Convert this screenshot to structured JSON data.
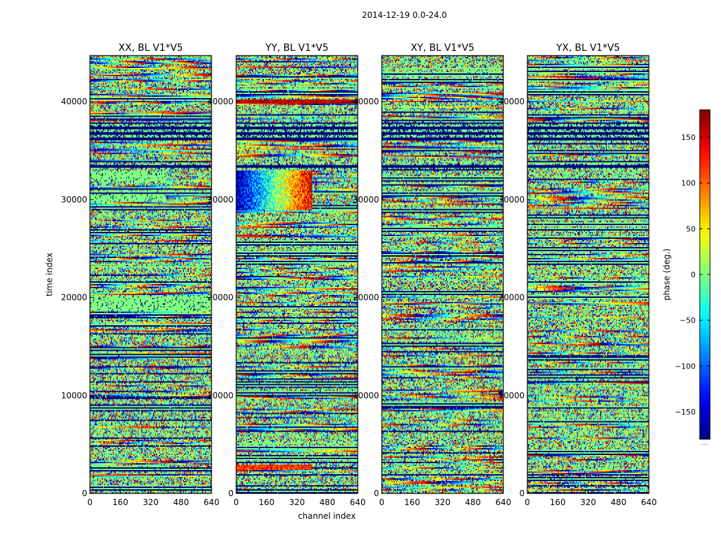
{
  "figure": {
    "suptitle": "2014-12-19 0.0-24.0"
  },
  "chart_data": {
    "type": "heatmap",
    "suptitle": "2014-12-19 0.0-24.0",
    "xlabel": "channel index",
    "ylabel": "time index",
    "xlim": [
      0,
      640
    ],
    "ylim": [
      0,
      44700
    ],
    "xticks": [
      0,
      160,
      320,
      480,
      640
    ],
    "yticks": [
      0,
      10000,
      20000,
      30000,
      40000
    ],
    "colormap": "jet",
    "colorbar": {
      "label": "phase (deg.)",
      "range": [
        -180,
        180
      ],
      "ticks": [
        -150,
        -100,
        -50,
        0,
        50,
        100,
        150
      ],
      "tick_labels": [
        "−150",
        "−100",
        "−50",
        "0",
        "50",
        "100",
        "150"
      ],
      "bottom_label": "......"
    },
    "panels": [
      {
        "title": "XX, BL V1*V5",
        "features": [
          {
            "kind": "flat_band",
            "t0": 31800,
            "t1": 33000,
            "c0": 0,
            "c1": 400,
            "phase": 0
          },
          {
            "kind": "flat_band",
            "t0": 29800,
            "t1": 30600,
            "c0": 0,
            "c1": 400,
            "phase": 0
          },
          {
            "kind": "flat_band",
            "t0": 18600,
            "t1": 20200,
            "c0": 0,
            "c1": 640,
            "phase": 0
          },
          {
            "kind": "flat_band",
            "t0": 2600,
            "t1": 3000,
            "c0": 0,
            "c1": 400,
            "phase": 0
          },
          {
            "kind": "dark_band",
            "t0": 33100,
            "t1": 33600,
            "phase": -180
          },
          {
            "kind": "dark_band",
            "t0": 36000,
            "t1": 37800,
            "phase": -180
          }
        ]
      },
      {
        "title": "YY, BL V1*V5",
        "features": [
          {
            "kind": "hot_block",
            "t0": 28900,
            "t1": 33000,
            "c0": 0,
            "c1": 400,
            "phase_left": -170,
            "phase_right": 150
          },
          {
            "kind": "hot_strip",
            "t0": 39800,
            "t1": 40200,
            "c0": 0,
            "c1": 640,
            "phase": 160
          },
          {
            "kind": "hot_strip",
            "t0": 2400,
            "t1": 3000,
            "c0": 0,
            "c1": 400,
            "phase": 120
          },
          {
            "kind": "dark_band",
            "t0": 33100,
            "t1": 33600,
            "phase": -180
          },
          {
            "kind": "dark_band",
            "t0": 36000,
            "t1": 37800,
            "phase": -180
          }
        ]
      },
      {
        "title": "XY, BL V1*V5",
        "features": [
          {
            "kind": "dark_band",
            "t0": 33100,
            "t1": 33600,
            "phase": -180
          },
          {
            "kind": "dark_band",
            "t0": 36000,
            "t1": 37800,
            "phase": -180
          }
        ]
      },
      {
        "title": "YX, BL V1*V5",
        "features": [
          {
            "kind": "dark_band",
            "t0": 33100,
            "t1": 33600,
            "phase": -180
          },
          {
            "kind": "dark_band",
            "t0": 36000,
            "t1": 37800,
            "phase": -180
          }
        ]
      }
    ]
  }
}
